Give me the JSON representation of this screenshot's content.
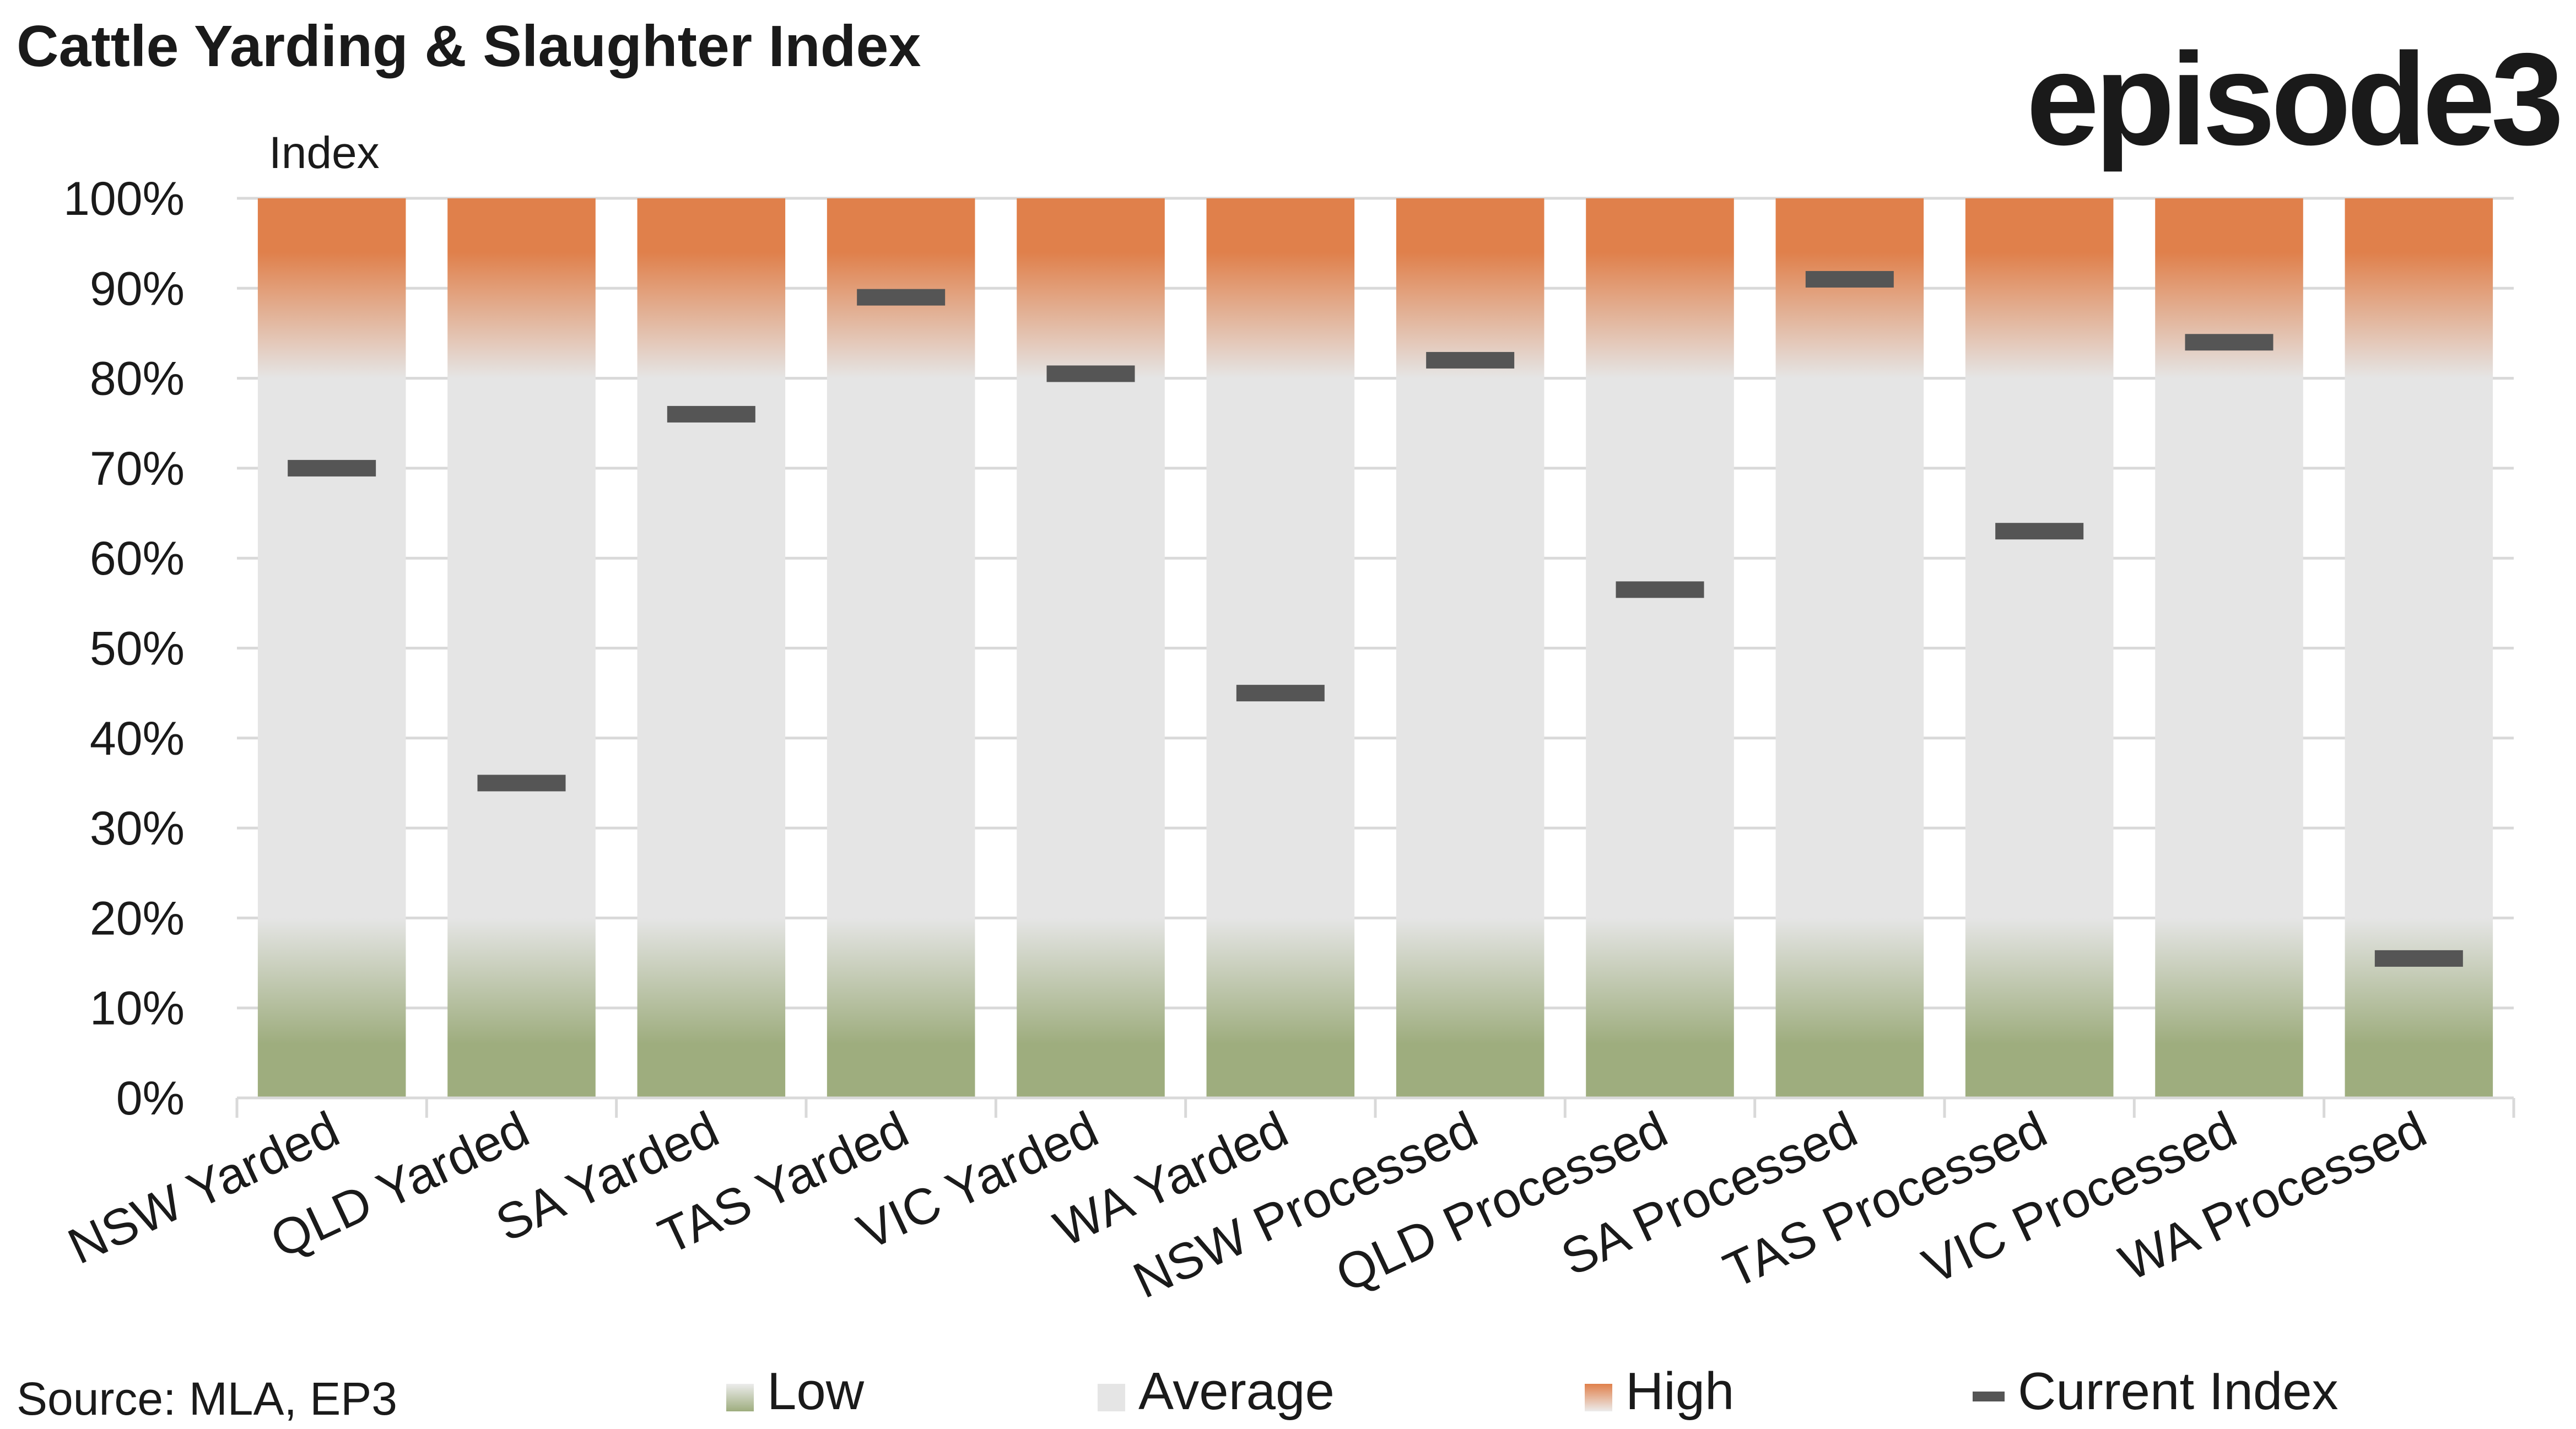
{
  "title": "Cattle Yarding & Slaughter Index",
  "brand": "episode3",
  "source": "Source: MLA, EP3",
  "colors": {
    "low": "#9ead7e",
    "average": "#e5e5e5",
    "high": "#e0804b",
    "current": "#555555",
    "grid": "#d9d9d9",
    "text": "#1a1a1a"
  },
  "chart_data": {
    "type": "bar",
    "ylabel": "Index",
    "ylim": [
      0,
      100
    ],
    "yticks": [
      "0%",
      "10%",
      "20%",
      "30%",
      "40%",
      "50%",
      "60%",
      "70%",
      "80%",
      "90%",
      "100%"
    ],
    "categories": [
      "NSW Yarded",
      "QLD Yarded",
      "SA Yarded",
      "TAS Yarded",
      "VIC Yarded",
      "WA Yarded",
      "NSW Processed",
      "QLD Processed",
      "SA Processed",
      "TAS Processed",
      "VIC Processed",
      "WA Processed"
    ],
    "bands": [
      {
        "name": "Low",
        "from": 0,
        "to": 20
      },
      {
        "name": "Average",
        "from": 20,
        "to": 80
      },
      {
        "name": "High",
        "from": 80,
        "to": 100
      }
    ],
    "current_index": {
      "name": "Current Index",
      "values": [
        70,
        35,
        76,
        89,
        80.5,
        45,
        82,
        56.5,
        91,
        63,
        84,
        15.5
      ]
    },
    "legend": [
      "Low",
      "Average",
      "High",
      "Current Index"
    ],
    "legend_position": "bottom",
    "grid": true
  }
}
